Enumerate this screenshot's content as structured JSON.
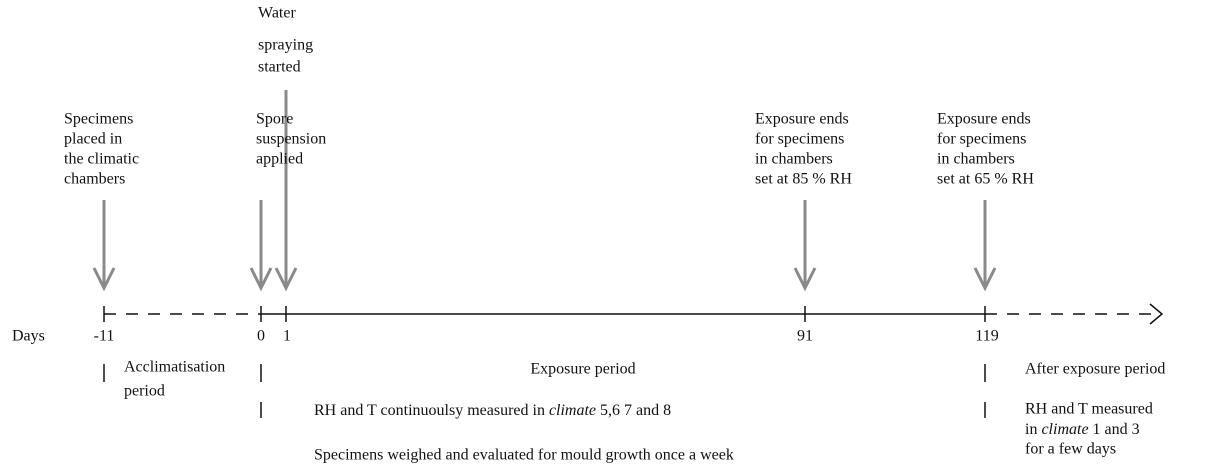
{
  "events": [
    {
      "label": [
        "Specimens",
        "placed in",
        "the climatic",
        "chambers"
      ]
    },
    {
      "label": [
        "Spore",
        "suspension",
        "applied"
      ]
    },
    {
      "label": [
        "Water",
        "spraying",
        "started"
      ]
    },
    {
      "label": [
        "Exposure ends",
        "for specimens",
        "in chambers",
        "set at 85 % RH"
      ]
    },
    {
      "label": [
        "Exposure ends",
        "for specimens",
        "in chambers",
        "set at 65 % RH"
      ]
    }
  ],
  "axis": {
    "label": "Days",
    "ticks": [
      "-11",
      "0",
      "1",
      "91",
      "119"
    ]
  },
  "periods": {
    "acclimatisation": [
      "Acclimatisation",
      "period"
    ],
    "exposure": "Exposure period",
    "after": "After exposure period"
  },
  "notes": {
    "exposure_measure": {
      "before": "RH and T continuoulsy measured in ",
      "italic": "climate",
      "after": " 5,6 7 and 8"
    },
    "weighing": "Specimens weighed and evaluated for mould growth once a week",
    "after_measure": {
      "line1": "RH and T measured",
      "line2": {
        "before": "in ",
        "italic": "climate",
        "after": " 1 and 3"
      },
      "line3": "for a few days"
    }
  }
}
